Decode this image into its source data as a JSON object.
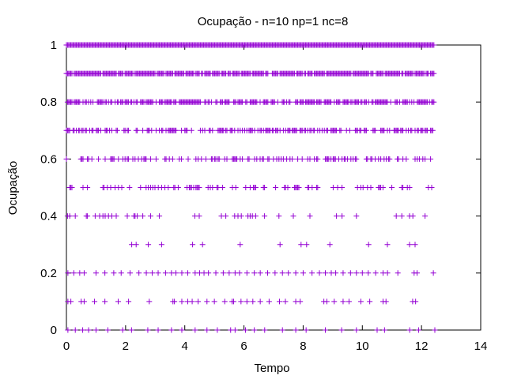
{
  "chart_data": {
    "type": "scatter",
    "title": "Ocupação - n=10 np=1 nc=8",
    "xlabel": "Tempo",
    "ylabel": "Ocupação",
    "xlim": [
      0,
      14
    ],
    "ylim": [
      0,
      1
    ],
    "xticks": [
      "0",
      "2",
      "4",
      "6",
      "8",
      "10",
      "12",
      "14"
    ],
    "yticks": [
      "0",
      "0.2",
      "0.4",
      "0.6",
      "0.8",
      "1"
    ],
    "grid": false,
    "legend": "none",
    "marker": "+",
    "color": "#9400d3",
    "x_extent": [
      0,
      12.45
    ],
    "series": [
      {
        "y": 0.0,
        "x": [
          0.05,
          0.3,
          0.55,
          0.75,
          1.0,
          1.4,
          1.9,
          2.2,
          2.75,
          3.1,
          3.55,
          3.9,
          4.35,
          4.75,
          5.1,
          5.55,
          5.7,
          6.05,
          6.35,
          6.7,
          7.3,
          7.75,
          8.1,
          8.75,
          9.3,
          9.8,
          10.5,
          10.75,
          11.6,
          11.9,
          12.45
        ]
      },
      {
        "y": 0.1,
        "x": [
          0.05,
          0.15,
          0.5,
          0.6,
          0.95,
          1.3,
          1.75,
          2.1,
          2.8,
          3.6,
          3.65,
          3.9,
          4.1,
          4.25,
          4.45,
          4.75,
          5.0,
          5.35,
          5.6,
          5.65,
          5.9,
          6.1,
          6.3,
          6.55,
          6.85,
          7.2,
          7.4,
          7.75,
          7.9,
          8.7,
          8.8,
          9.05,
          9.35,
          9.55,
          9.95,
          10.25,
          10.7,
          10.8,
          11.7,
          11.8
        ]
      },
      {
        "y": 0.2,
        "x": [
          0.05,
          0.25,
          0.45,
          0.6,
          1.0,
          1.3,
          1.6,
          1.85,
          2.15,
          2.45,
          2.7,
          2.9,
          3.1,
          3.35,
          3.55,
          3.7,
          3.9,
          4.1,
          4.35,
          4.5,
          4.65,
          4.8,
          5.05,
          5.3,
          5.5,
          5.7,
          5.85,
          6.1,
          6.35,
          6.55,
          6.8,
          7.05,
          7.3,
          7.5,
          7.75,
          8.0,
          8.3,
          8.55,
          8.75,
          8.95,
          9.1,
          9.35,
          9.6,
          9.8,
          10.0,
          10.2,
          10.45,
          10.7,
          10.85,
          11.2,
          11.75,
          11.85,
          12.4
        ]
      }
    ],
    "bands": [
      {
        "y": 0.3,
        "density": 0.6
      },
      {
        "y": 0.4,
        "density": 1.2
      },
      {
        "y": 0.5,
        "density": 2.2
      },
      {
        "y": 0.6,
        "density": 3.2
      },
      {
        "y": 0.7,
        "density": 5.0
      },
      {
        "y": 0.8,
        "density": 7.0
      },
      {
        "y": 0.9,
        "density": 9.0
      },
      {
        "y": 1.0,
        "density": 10.0
      }
    ]
  }
}
